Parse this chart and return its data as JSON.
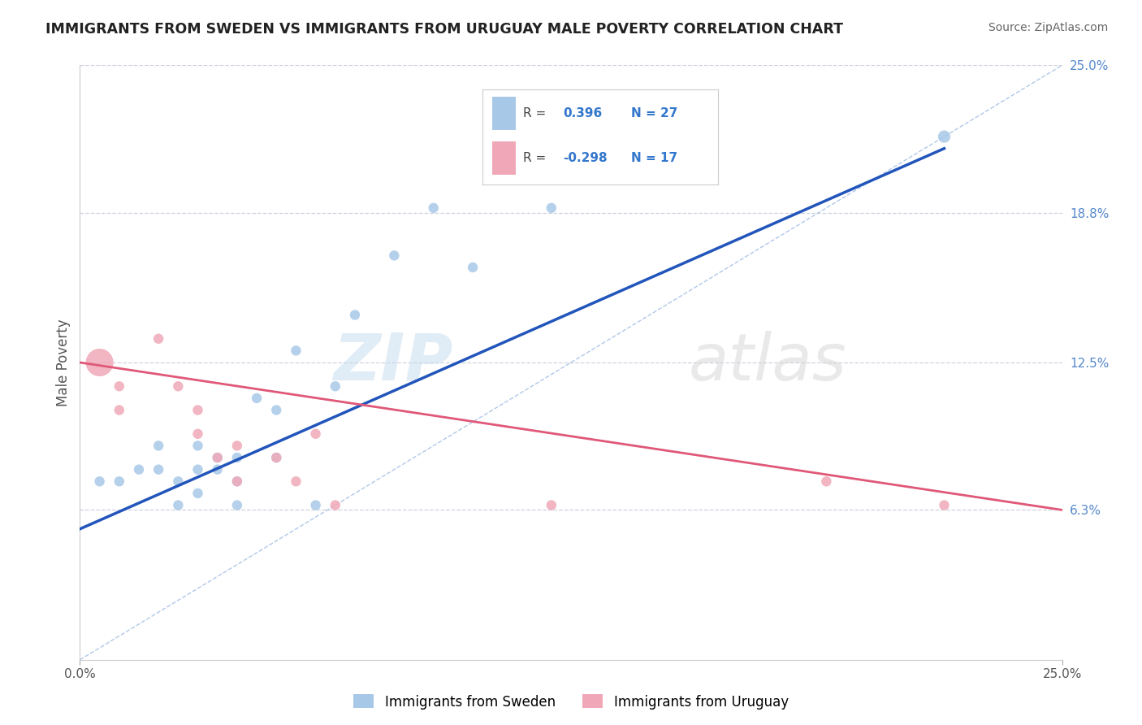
{
  "title": "IMMIGRANTS FROM SWEDEN VS IMMIGRANTS FROM URUGUAY MALE POVERTY CORRELATION CHART",
  "source": "Source: ZipAtlas.com",
  "ylabel": "Male Poverty",
  "xlim": [
    0.0,
    0.25
  ],
  "ylim": [
    0.0,
    0.25
  ],
  "sweden_R": 0.396,
  "sweden_N": 27,
  "uruguay_R": -0.298,
  "uruguay_N": 17,
  "sweden_color": "#a8c8e8",
  "uruguay_color": "#f0a8b8",
  "sweden_line_color": "#2255bb",
  "uruguay_line_color": "#e05878",
  "diagonal_color": "#b0c8e8",
  "background_color": "#ffffff",
  "grid_color": "#d0d0e0",
  "sweden_scatter_x": [
    0.005,
    0.01,
    0.015,
    0.02,
    0.02,
    0.025,
    0.025,
    0.03,
    0.03,
    0.03,
    0.035,
    0.035,
    0.04,
    0.04,
    0.04,
    0.045,
    0.05,
    0.05,
    0.055,
    0.06,
    0.065,
    0.07,
    0.08,
    0.09,
    0.1,
    0.12,
    0.22
  ],
  "sweden_scatter_y": [
    0.075,
    0.075,
    0.08,
    0.08,
    0.09,
    0.065,
    0.075,
    0.07,
    0.08,
    0.09,
    0.08,
    0.085,
    0.065,
    0.075,
    0.085,
    0.11,
    0.085,
    0.105,
    0.13,
    0.065,
    0.115,
    0.145,
    0.17,
    0.19,
    0.165,
    0.19,
    0.22
  ],
  "sweden_scatter_s": [
    80,
    80,
    80,
    80,
    80,
    80,
    80,
    80,
    80,
    80,
    80,
    80,
    80,
    80,
    80,
    80,
    80,
    80,
    80,
    80,
    80,
    80,
    80,
    80,
    80,
    80,
    120
  ],
  "uruguay_scatter_x": [
    0.005,
    0.01,
    0.01,
    0.02,
    0.025,
    0.03,
    0.03,
    0.035,
    0.04,
    0.04,
    0.05,
    0.055,
    0.06,
    0.065,
    0.12,
    0.19,
    0.22
  ],
  "uruguay_scatter_y": [
    0.125,
    0.115,
    0.105,
    0.135,
    0.115,
    0.095,
    0.105,
    0.085,
    0.09,
    0.075,
    0.085,
    0.075,
    0.095,
    0.065,
    0.065,
    0.075,
    0.065
  ],
  "uruguay_scatter_s": [
    600,
    80,
    80,
    80,
    80,
    80,
    80,
    80,
    80,
    80,
    80,
    80,
    80,
    80,
    80,
    80,
    80
  ],
  "sweden_line_x0": 0.0,
  "sweden_line_y0": 0.055,
  "sweden_line_x1": 0.22,
  "sweden_line_y1": 0.215,
  "uruguay_line_x0": 0.0,
  "uruguay_line_y0": 0.125,
  "uruguay_line_x1": 0.25,
  "uruguay_line_y1": 0.063,
  "watermark_text": "ZIPatlas",
  "y_tick_positions": [
    0.063,
    0.125,
    0.188,
    0.25
  ],
  "y_tick_labels": [
    "6.3%",
    "12.5%",
    "18.8%",
    "25.0%"
  ]
}
